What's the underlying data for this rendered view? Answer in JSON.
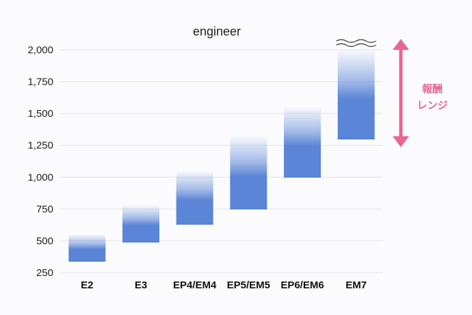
{
  "chart_data": {
    "type": "bar",
    "title": "engineer",
    "xlabel": "",
    "ylabel": "",
    "ylim": [
      250,
      2000
    ],
    "yticks": [
      250,
      500,
      750,
      1000,
      1250,
      1500,
      1750,
      2000
    ],
    "ytick_labels": [
      "250",
      "500",
      "750",
      "1,000",
      "1,250",
      "1,500",
      "1,750",
      "2,000"
    ],
    "grid": true,
    "categories": [
      "E2",
      "E3",
      "EP4/EM4",
      "EP5/EM5",
      "EP6/EM6",
      "EM7"
    ],
    "series": [
      {
        "low": [
          340,
          490,
          630,
          750,
          1000,
          1300
        ],
        "high": [
          550,
          780,
          1050,
          1320,
          1550,
          2000
        ],
        "open_top": [
          false,
          false,
          false,
          false,
          false,
          true
        ]
      }
    ],
    "annotation": {
      "line1": "報酬",
      "line2": "レンジ"
    },
    "colors": {
      "bar": "#5b85d6",
      "arrow": "#e8668f",
      "grid": "#e3e3e8"
    }
  }
}
